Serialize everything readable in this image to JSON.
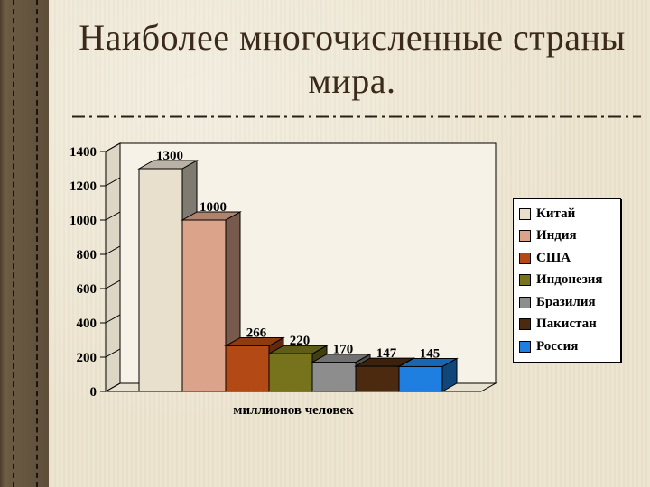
{
  "slide": {
    "title": "Наиболее многочисленные страны мира."
  },
  "chart_data": {
    "type": "bar",
    "categories": [
      "Китай",
      "Индия",
      "США",
      "Индонезия",
      "Бразилия",
      "Пакистан",
      "Россия"
    ],
    "values": [
      1300,
      1000,
      266,
      220,
      170,
      147,
      145
    ],
    "data_labels": [
      "1300",
      "1000",
      "266",
      "220",
      "170",
      "147",
      "145"
    ],
    "colors": [
      "#e8dfcd",
      "#dba38a",
      "#b34a15",
      "#77731d",
      "#8d8d8d",
      "#4b2a10",
      "#1f7fe0"
    ],
    "xlabel": "миллионов человек",
    "ylabel": "",
    "ylim": [
      0,
      1400
    ],
    "yticks": [
      0,
      200,
      400,
      600,
      800,
      1000,
      1200,
      1400
    ],
    "legend_position": "right",
    "three_d": true,
    "grid": false
  }
}
